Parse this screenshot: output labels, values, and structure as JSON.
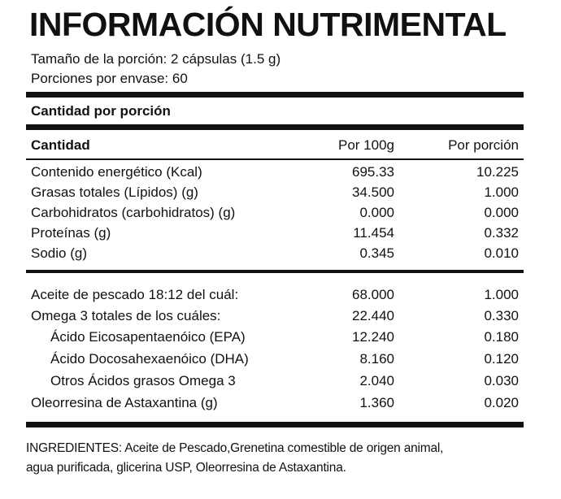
{
  "title": "INFORMACIÓN NUTRIMENTAL",
  "serving": {
    "size": "Tamaño de la porción: 2 cápsulas (1.5 g)",
    "per_container": "Porciones por envase: 60"
  },
  "section_heading": "Cantidad por porción",
  "columns": {
    "name": "Cantidad",
    "per_100g": "Por 100g",
    "per_serving": "Por porción"
  },
  "nutrients": [
    {
      "name": "Contenido energético (Kcal)",
      "per_100g": "695.33",
      "per_serving": "10.225"
    },
    {
      "name": "Grasas totales (Lípidos) (g)",
      "per_100g": "34.500",
      "per_serving": "1.000"
    },
    {
      "name": "Carbohidratos (carbohidratos) (g)",
      "per_100g": "0.000",
      "per_serving": "0.000"
    },
    {
      "name": "Proteínas (g)",
      "per_100g": "11.454",
      "per_serving": "0.332"
    },
    {
      "name": "Sodio (g)",
      "per_100g": "0.345",
      "per_serving": "0.010"
    }
  ],
  "oils": [
    {
      "name": "Aceite de pescado 18:12 del cuál:",
      "per_100g": "68.000",
      "per_serving": "1.000"
    },
    {
      "name": "Omega 3 totales de los cuáles:",
      "per_100g": "22.440",
      "per_serving": "0.330"
    },
    {
      "name": "Ácido Eicosapentaenóico (EPA)",
      "per_100g": "12.240",
      "per_serving": "0.180"
    },
    {
      "name": "Ácido Docosahexaenóico (DHA)",
      "per_100g": "8.160",
      "per_serving": "0.120"
    },
    {
      "name": "Otros Ácidos grasos Omega 3",
      "per_100g": "2.040",
      "per_serving": "0.030"
    },
    {
      "name": "Oleorresina de Astaxantina (g)",
      "per_100g": "1.360",
      "per_serving": "0.020"
    }
  ],
  "ingredients": {
    "line1": "INGREDIENTES: Aceite de Pescado,Grenetina comestible de origen animal,",
    "line2": "agua purificada, glicerina USP, Oleorresina de Astaxantina."
  }
}
